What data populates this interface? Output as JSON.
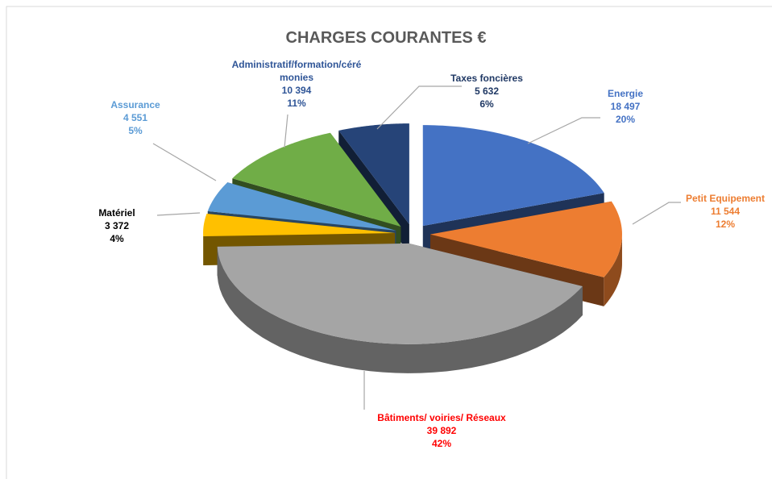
{
  "chart_data": {
    "type": "pie3d",
    "title": "CHARGES COURANTES €",
    "categories": [
      "Energie",
      "Petit Equipement",
      "Bâtiments/ voiries/ Réseaux",
      "Matériel",
      "Assurance",
      "Administratif/formation/cérémonies",
      "Taxes foncières"
    ],
    "values": [
      18497,
      11544,
      39892,
      3372,
      4551,
      10394,
      5632
    ],
    "value_labels": [
      "18 497",
      "11 544",
      "39 892",
      "3 372",
      "4 551",
      "10 394",
      "5 632"
    ],
    "percent_labels": [
      "20%",
      "12%",
      "42%",
      "4%",
      "5%",
      "11%",
      "6%"
    ],
    "colors": [
      "#4472c4",
      "#ed7d31",
      "#a5a5a5",
      "#ffc000",
      "#5b9bd5",
      "#70ad47",
      "#264478"
    ],
    "label_colors": [
      "#4472c4",
      "#ed7d31",
      "#ff0000",
      "#000000",
      "#5b9bd5",
      "#2f5597",
      "#1f3864"
    ]
  }
}
